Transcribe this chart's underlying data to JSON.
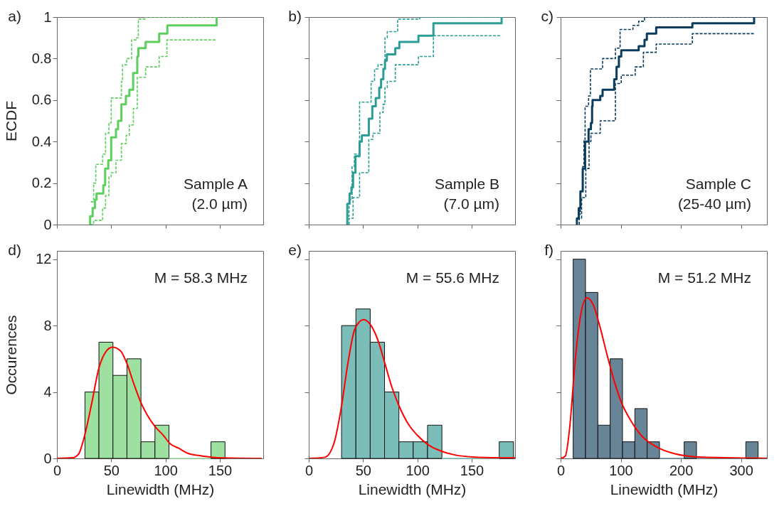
{
  "chart_data": [
    {
      "type": "step",
      "ylabel": "ECDF",
      "xlim": [
        0,
        190
      ],
      "xticks": [
        0,
        50,
        100,
        150
      ],
      "ylim": [
        0,
        1
      ],
      "yticks": [
        0,
        0.2,
        0.4,
        0.6,
        0.8,
        1
      ],
      "tick_labels": "y",
      "grid": false,
      "legend": false,
      "annotations": [
        "a)",
        "Sample A",
        "(2.0 µm)"
      ],
      "series": [
        {
          "color": "#5ccf5c",
          "line_style": "solid",
          "x": [
            30.6,
            30.6,
            32.9,
            35.0,
            36.5,
            42.7,
            44.4,
            47.3,
            50.0,
            54.4,
            56.3,
            59.4,
            63.5,
            66.7,
            70.2,
            74.0,
            75.0,
            81.7,
            94.2,
            101.7,
            147.1
          ],
          "values": [
            0,
            0.04,
            0.08,
            0.12,
            0.15,
            0.19,
            0.27,
            0.31,
            0.42,
            0.46,
            0.5,
            0.58,
            0.62,
            0.65,
            0.73,
            0.81,
            0.85,
            0.88,
            0.92,
            0.96,
            1.0
          ]
        },
        {
          "color": "#5ccf5c",
          "line_style": "dashed",
          "x": [
            31.2,
            33.8,
            35.8,
            42.1,
            44.8,
            47.9,
            50.0,
            59.4,
            60.4,
            64.2,
            68.8,
            73.3,
            75.0,
            81.3,
            147.1
          ],
          "values": [
            0.11,
            0.2,
            0.29,
            0.34,
            0.44,
            0.49,
            0.61,
            0.69,
            0.77,
            0.8,
            0.89,
            0.9,
            0.99,
            1.0,
            1.0
          ]
        },
        {
          "color": "#5ccf5c",
          "line_style": "dashed",
          "x": [
            30.6,
            33.8,
            42.1,
            44.8,
            47.9,
            50.0,
            54.4,
            59.4,
            63.8,
            66.7,
            70.4,
            74.0,
            81.7,
            94.2,
            101.3,
            147.1
          ],
          "values": [
            0,
            0.02,
            0.08,
            0.14,
            0.23,
            0.25,
            0.31,
            0.39,
            0.43,
            0.48,
            0.56,
            0.71,
            0.76,
            0.81,
            0.89,
            0.89
          ]
        }
      ]
    },
    {
      "type": "step",
      "xlim": [
        0,
        190
      ],
      "xticks": [
        0,
        50,
        100,
        150
      ],
      "ylim": [
        0,
        1
      ],
      "yticks": [
        0,
        0.2,
        0.4,
        0.6,
        0.8,
        1
      ],
      "tick_labels": false,
      "grid": false,
      "legend": false,
      "annotations": [
        "b)",
        "Sample B",
        "(7.0 µm)"
      ],
      "series": [
        {
          "color": "#2b9d95",
          "line_style": "solid",
          "x": [
            35.5,
            35.5,
            37.6,
            39.3,
            40.8,
            43.0,
            46.8,
            48.9,
            55.3,
            58.5,
            61.7,
            64.9,
            66.6,
            68.7,
            70.2,
            71.9,
            79.7,
            83.4,
            101.0,
            114.8,
            177.6
          ],
          "values": [
            0,
            0.1,
            0.15,
            0.18,
            0.25,
            0.33,
            0.4,
            0.43,
            0.51,
            0.57,
            0.61,
            0.66,
            0.7,
            0.75,
            0.79,
            0.82,
            0.85,
            0.88,
            0.91,
            0.97,
            1.0
          ]
        },
        {
          "color": "#2b9d95",
          "line_style": "dashed",
          "x": [
            36.1,
            37.1,
            39.9,
            42.0,
            46.8,
            57.4,
            60.6,
            63.8,
            70.2,
            72.3,
            81.9,
            102.1,
            177.6
          ],
          "values": [
            0.04,
            0.12,
            0.28,
            0.34,
            0.59,
            0.69,
            0.75,
            0.77,
            0.9,
            0.93,
            0.99,
            1.0,
            1.0
          ]
        },
        {
          "color": "#2b9d95",
          "line_style": "dashed",
          "x": [
            37.1,
            37.1,
            40.8,
            46.8,
            55.3,
            59.1,
            65.5,
            68.5,
            70.2,
            72.3,
            79.7,
            101.0,
            114.8,
            177.6
          ],
          "values": [
            0,
            0.03,
            0.13,
            0.25,
            0.41,
            0.44,
            0.54,
            0.58,
            0.66,
            0.69,
            0.77,
            0.81,
            0.91,
            0.91
          ]
        }
      ]
    },
    {
      "type": "step",
      "xlim": [
        0,
        343
      ],
      "xticks": [
        0,
        100,
        200,
        300
      ],
      "ylim": [
        0,
        1
      ],
      "yticks": [
        0,
        0.2,
        0.4,
        0.6,
        0.8,
        1
      ],
      "tick_labels": false,
      "grid": false,
      "legend": false,
      "annotations": [
        "c)",
        "Sample C",
        "(25-40 µm)"
      ],
      "series": [
        {
          "color": "#0b3c5d",
          "line_style": "solid",
          "x": [
            27.1,
            27.1,
            30.2,
            32.9,
            36.8,
            40.7,
            46.5,
            50.4,
            52.3,
            53.1,
            65.9,
            69.8,
            89.1,
            93.0,
            96.9,
            100.8,
            129.8,
            139.5,
            143.4,
            158.9,
            219.0,
            321.7
          ],
          "values": [
            0,
            0.03,
            0.08,
            0.16,
            0.27,
            0.4,
            0.46,
            0.49,
            0.57,
            0.6,
            0.62,
            0.65,
            0.7,
            0.76,
            0.81,
            0.84,
            0.86,
            0.89,
            0.92,
            0.95,
            0.97,
            1.0
          ]
        },
        {
          "color": "#0b3c5d",
          "line_style": "dashed",
          "x": [
            29.1,
            32.9,
            36.8,
            38.8,
            40.7,
            46.5,
            49.6,
            69.8,
            91.1,
            98.9,
            120.2,
            129.8,
            139.5,
            321.7
          ],
          "values": [
            0.05,
            0.16,
            0.28,
            0.41,
            0.57,
            0.62,
            0.75,
            0.8,
            0.85,
            0.94,
            0.96,
            0.98,
            1.0,
            1.0
          ]
        },
        {
          "color": "#0b3c5d",
          "line_style": "dashed",
          "x": [
            31.0,
            31.0,
            34.9,
            41.9,
            47.3,
            50.4,
            65.9,
            91.1,
            100.8,
            124.0,
            137.6,
            158.9,
            219.0,
            321.7
          ],
          "values": [
            0,
            0.03,
            0.13,
            0.27,
            0.4,
            0.44,
            0.5,
            0.68,
            0.72,
            0.76,
            0.83,
            0.87,
            0.92,
            0.92
          ]
        }
      ]
    },
    {
      "type": "histogram",
      "xlabel": "Linewidth (MHz)",
      "ylabel": "Occurences",
      "xlim": [
        0,
        190
      ],
      "xticks": [
        0,
        50,
        100,
        150
      ],
      "ylim": [
        0,
        12.5
      ],
      "yticks": [
        0,
        4,
        8,
        12
      ],
      "grid": false,
      "legend": false,
      "annotations": [
        "d)",
        "M = 58.3 MHz"
      ],
      "color": "#9de0a0",
      "bins": [
        25.8,
        38.7,
        51.6,
        64.5,
        77.4,
        90.3,
        103.2,
        116.1,
        129.0,
        141.9,
        154.8
      ],
      "values": [
        4,
        7,
        5,
        6,
        1,
        2,
        0,
        0,
        0,
        1
      ],
      "series": [
        {
          "type": "line",
          "color": "#ff0000",
          "x": [
            0,
            14.6,
            19.8,
            26.0,
            32.3,
            38.5,
            44.8,
            51.0,
            58.3,
            64.6,
            70.8,
            77.1,
            83.3,
            90.6,
            97.9,
            104.0,
            112.5,
            120.8,
            133.0,
            152.0,
            188.5
          ],
          "values": [
            0,
            0.04,
            0.25,
            1.5,
            3.4,
            5.4,
            6.4,
            6.7,
            6.5,
            5.7,
            4.5,
            3.4,
            2.6,
            1.9,
            1.4,
            0.9,
            0.6,
            0.3,
            0.15,
            0.03,
            0
          ]
        }
      ]
    },
    {
      "type": "histogram",
      "xlabel": "Linewidth (MHz)",
      "xlim": [
        0,
        190
      ],
      "xticks": [
        0,
        50,
        100,
        150
      ],
      "ylim": [
        0,
        12.5
      ],
      "yticks": [
        0,
        4,
        8,
        12
      ],
      "tick_labels": "x",
      "grid": false,
      "legend": false,
      "annotations": [
        "e)",
        "M = 55.6 MHz"
      ],
      "color": "#7bbdb9",
      "bins": [
        30.2,
        43.4,
        56.6,
        69.8,
        83.0,
        96.2,
        109.4,
        122.6,
        135.8,
        149.0,
        162.2,
        175.4,
        188.6
      ],
      "values": [
        8,
        9,
        7,
        4,
        1,
        1,
        2,
        0,
        0,
        0,
        0,
        1
      ],
      "series": [
        {
          "type": "line",
          "color": "#ff0000",
          "x": [
            0,
            14.9,
            23.4,
            29.8,
            36.2,
            42.5,
            50.6,
            57.4,
            63.8,
            70.2,
            76.5,
            82.9,
            91.4,
            99.9,
            110.5,
            121.2,
            133.9,
            153.0,
            190.0
          ],
          "values": [
            0,
            0.07,
            0.95,
            3.0,
            5.8,
            7.8,
            8.36,
            8.0,
            7.1,
            5.7,
            4.3,
            3.2,
            2.1,
            1.4,
            0.8,
            0.46,
            0.22,
            0.08,
            0.03
          ]
        }
      ]
    },
    {
      "type": "histogram",
      "xlabel": "Linewidth (MHz)",
      "xlim": [
        0,
        343
      ],
      "xticks": [
        0,
        100,
        200,
        300
      ],
      "ylim": [
        0,
        12.5
      ],
      "yticks": [
        0,
        4,
        8,
        12
      ],
      "tick_labels": "x",
      "grid": false,
      "legend": false,
      "annotations": [
        "f)",
        "M = 51.2 MHz"
      ],
      "color": "#688597",
      "bins": [
        20.9,
        41.4,
        61.9,
        82.4,
        102.9,
        123.4,
        143.9,
        164.4,
        184.9,
        205.4,
        225.9,
        246.4,
        266.9,
        287.4,
        307.9,
        328.4
      ],
      "values": [
        12,
        10,
        2,
        6,
        1,
        3,
        1,
        0,
        0,
        1,
        0,
        0,
        0,
        0,
        1
      ],
      "series": [
        {
          "type": "line",
          "color": "#ff0000",
          "x": [
            0,
            7.8,
            15.5,
            23.3,
            31.0,
            43.4,
            54.3,
            65.9,
            77.5,
            89.1,
            100.8,
            116.3,
            135.7,
            159.0,
            190.0,
            236.4,
            343.0
          ],
          "values": [
            0,
            0.14,
            2.0,
            5.5,
            8.1,
            9.67,
            9.25,
            7.86,
            6.2,
            4.66,
            3.4,
            2.3,
            1.32,
            0.7,
            0.28,
            0.07,
            0.01
          ]
        }
      ]
    }
  ]
}
